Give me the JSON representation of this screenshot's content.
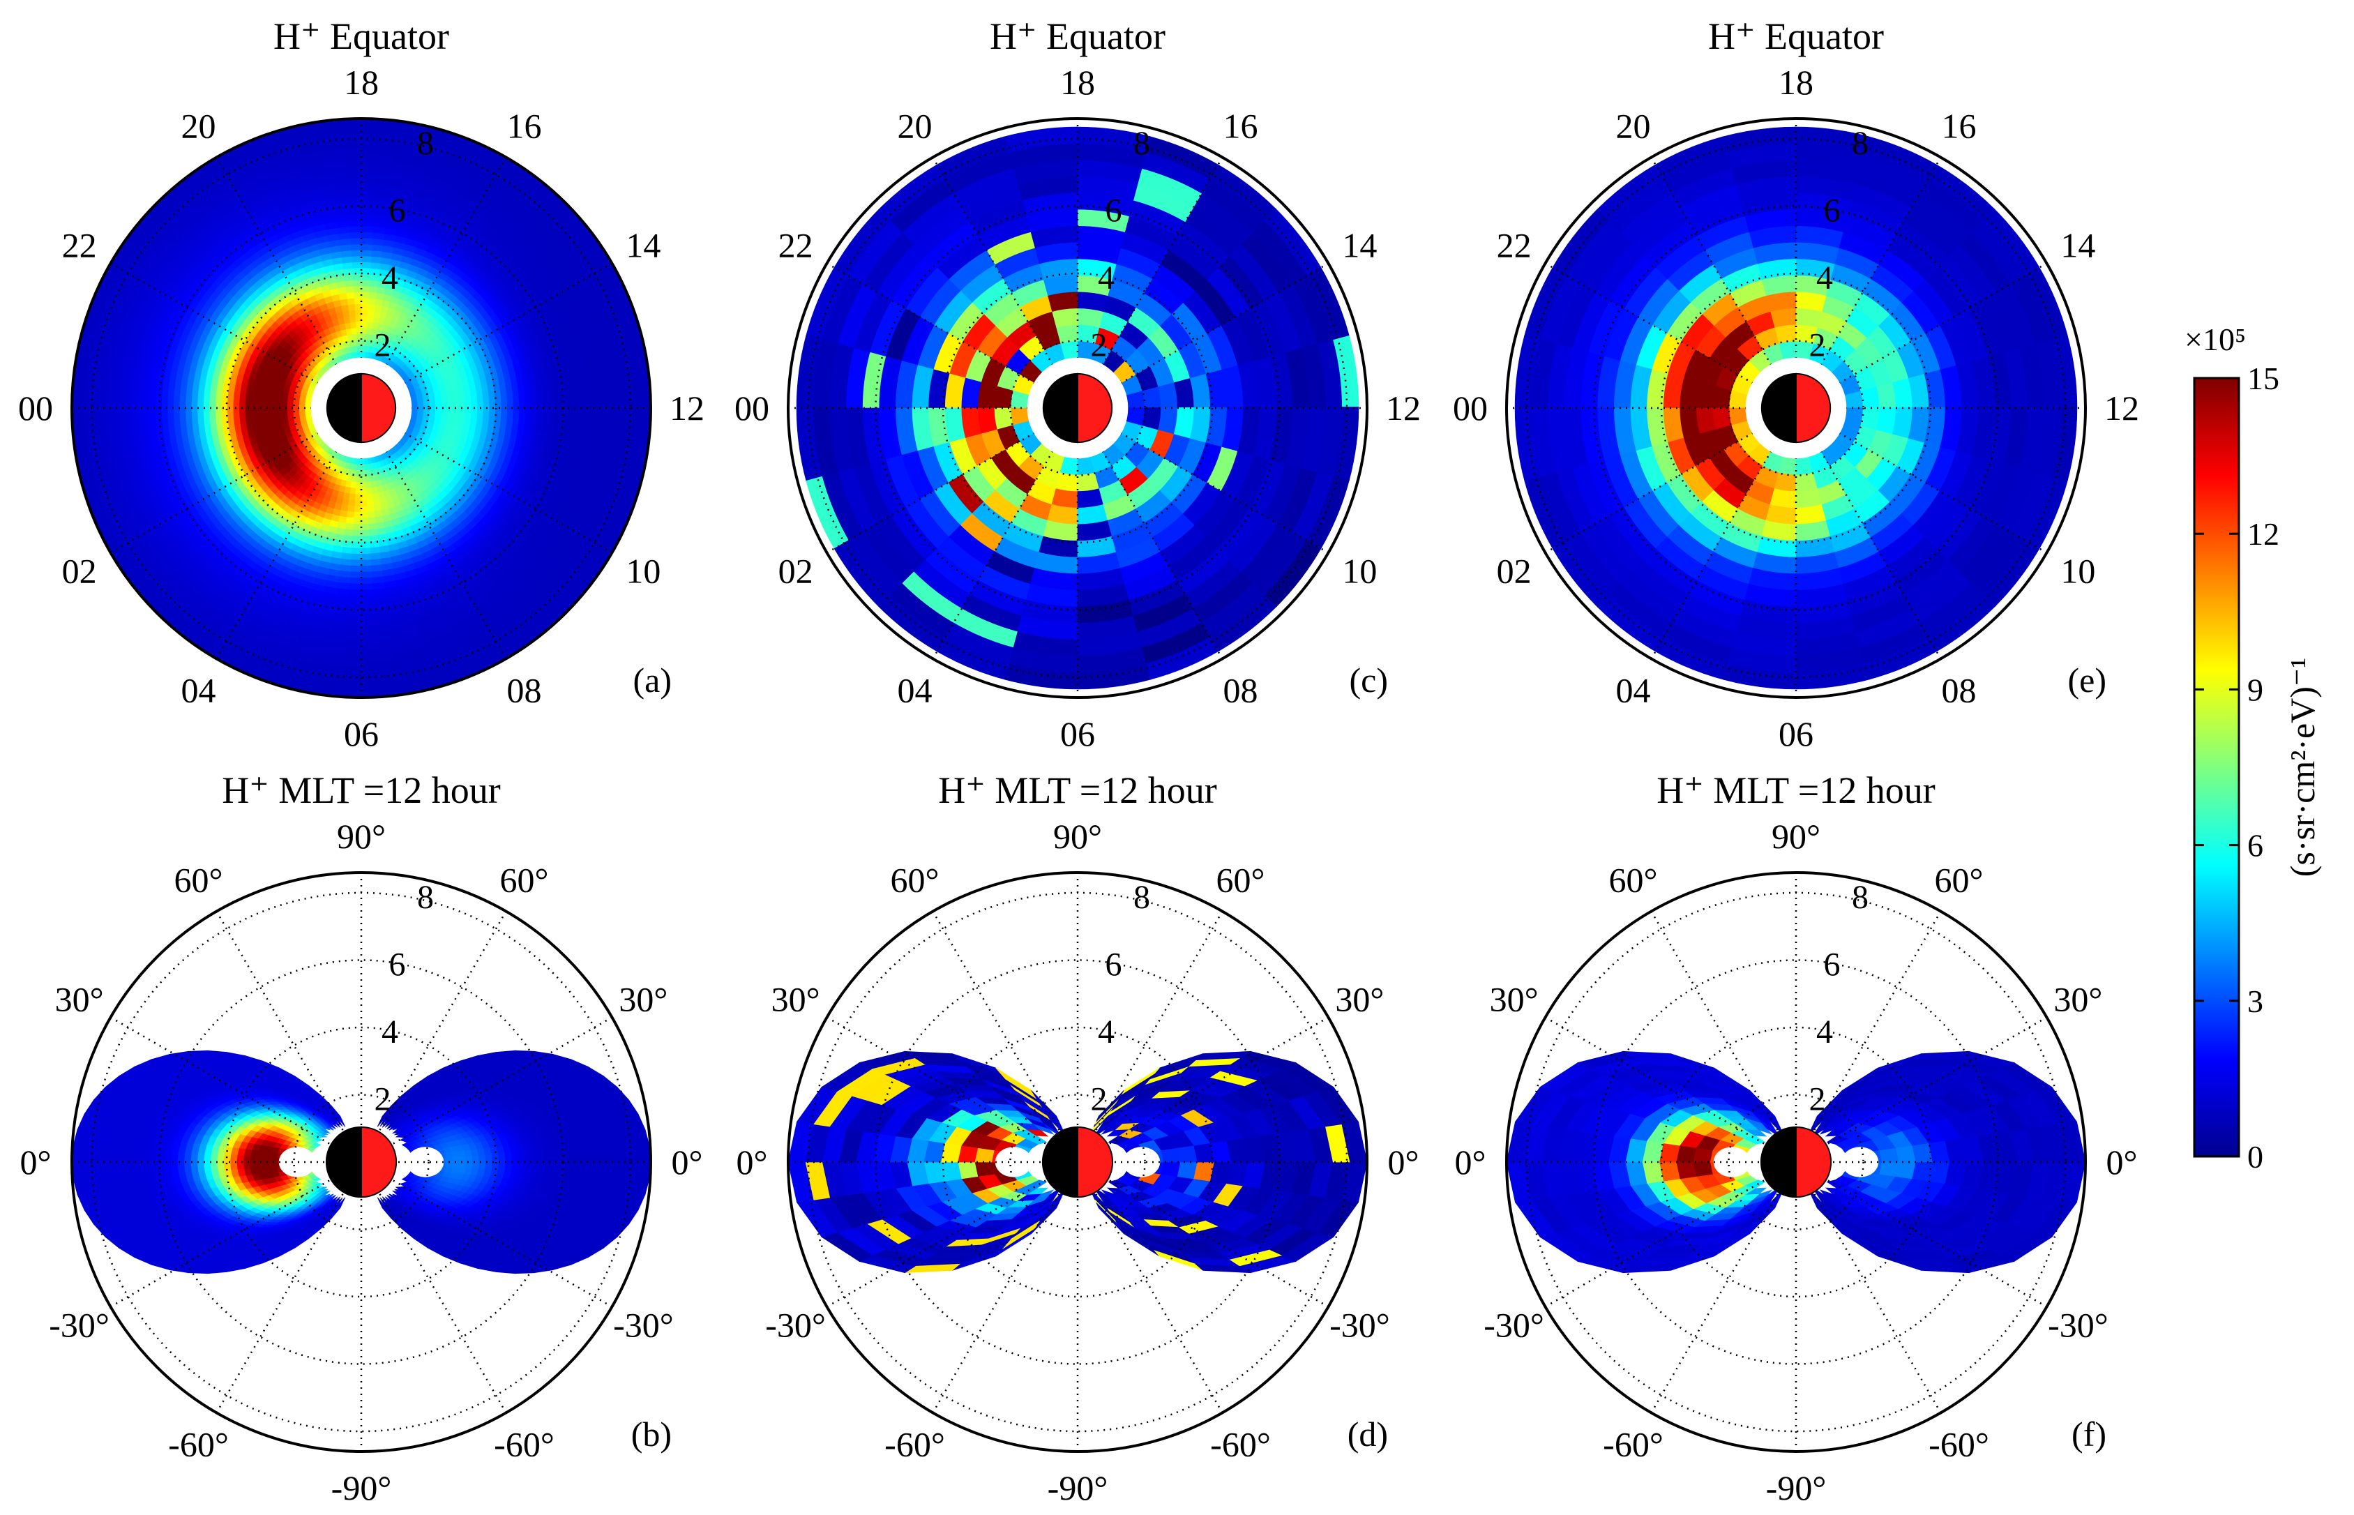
{
  "chart_data": {
    "type": "heatmap",
    "colormap": "jet",
    "colorbar": {
      "scale_label": "×10⁵",
      "unit": "(s·sr·cm²·eV)⁻¹",
      "min": 0,
      "max": 15,
      "ticks": [
        "0",
        "3",
        "6",
        "9",
        "12",
        "15"
      ]
    },
    "panels": [
      {
        "id": "a",
        "label": "(a)",
        "kind": "equator",
        "style": "smooth",
        "title": "H⁺ Equator",
        "peak_mlt": 0,
        "peak_L": 2.8,
        "peak_value": 15,
        "angle_labels": [
          "18",
          "16",
          "14",
          "12",
          "10",
          "08",
          "06",
          "04",
          "02",
          "00",
          "22",
          "20"
        ],
        "radial_labels": [
          "2",
          "4",
          "6",
          "8"
        ]
      },
      {
        "id": "b",
        "label": "(b)",
        "kind": "meridian",
        "style": "smooth",
        "title": "H⁺ MLT =12 hour",
        "peak_value": 15,
        "angle_labels": [
          "90°",
          "60°",
          "30°",
          "0°",
          "-30°",
          "-60°",
          "-90°",
          "-60°",
          "-30°",
          "0°",
          "30°",
          "60°"
        ],
        "radial_labels": [
          "2",
          "4",
          "6",
          "8"
        ]
      },
      {
        "id": "c",
        "label": "(c)",
        "kind": "equator",
        "style": "noisy",
        "title": "H⁺ Equator",
        "peak_mlt": 0,
        "peak_L": 2.8,
        "peak_value": 13,
        "angle_labels": [
          "18",
          "16",
          "14",
          "12",
          "10",
          "08",
          "06",
          "04",
          "02",
          "00",
          "22",
          "20"
        ],
        "radial_labels": [
          "2",
          "4",
          "6",
          "8"
        ]
      },
      {
        "id": "d",
        "label": "(d)",
        "kind": "meridian",
        "style": "noisy",
        "title": "H⁺ MLT =12 hour",
        "peak_value": 13,
        "angle_labels": [
          "90°",
          "60°",
          "30°",
          "0°",
          "-30°",
          "-60°",
          "-90°",
          "-60°",
          "-30°",
          "0°",
          "30°",
          "60°"
        ],
        "radial_labels": [
          "2",
          "4",
          "6",
          "8"
        ]
      },
      {
        "id": "e",
        "label": "(e)",
        "kind": "equator",
        "style": "binned",
        "title": "H⁺ Equator",
        "peak_mlt": 0,
        "peak_L": 2.8,
        "peak_value": 15,
        "angle_labels": [
          "18",
          "16",
          "14",
          "12",
          "10",
          "08",
          "06",
          "04",
          "02",
          "00",
          "22",
          "20"
        ],
        "radial_labels": [
          "2",
          "4",
          "6",
          "8"
        ]
      },
      {
        "id": "f",
        "label": "(f)",
        "kind": "meridian",
        "style": "binned",
        "title": "H⁺ MLT =12 hour",
        "peak_value": 15,
        "angle_labels": [
          "90°",
          "60°",
          "30°",
          "0°",
          "-30°",
          "-60°",
          "-90°",
          "-60°",
          "-30°",
          "0°",
          "30°",
          "60°"
        ],
        "radial_labels": [
          "2",
          "4",
          "6",
          "8"
        ]
      }
    ]
  }
}
